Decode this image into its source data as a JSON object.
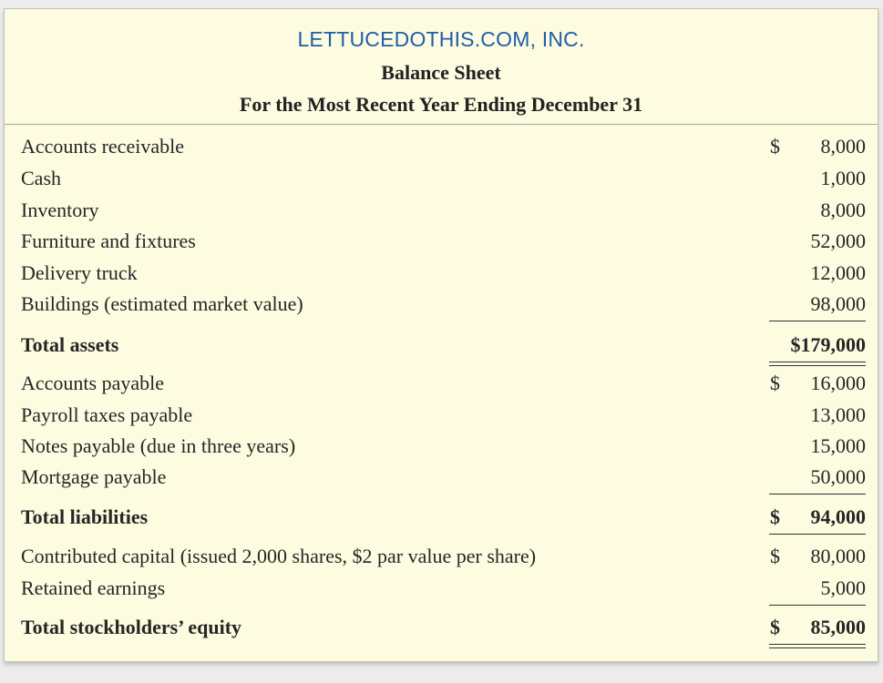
{
  "header": {
    "company": "LETTUCEDOTHIS.COM, INC.",
    "statement": "Balance Sheet",
    "period": "For the Most Recent Year Ending December 31"
  },
  "assets": [
    {
      "label": "Accounts receivable",
      "currency": "$",
      "amount": "8,000"
    },
    {
      "label": "Cash",
      "currency": "",
      "amount": "1,000"
    },
    {
      "label": "Inventory",
      "currency": "",
      "amount": "8,000"
    },
    {
      "label": "Furniture and fixtures",
      "currency": "",
      "amount": "52,000"
    },
    {
      "label": "Delivery truck",
      "currency": "",
      "amount": "12,000"
    },
    {
      "label": "Buildings (estimated market value)",
      "currency": "",
      "amount": "98,000"
    }
  ],
  "total_assets": {
    "label": "Total assets",
    "amount": "$179,000"
  },
  "liabilities": [
    {
      "label": "Accounts payable",
      "currency": "$",
      "amount": "16,000"
    },
    {
      "label": "Payroll taxes payable",
      "currency": "",
      "amount": "13,000"
    },
    {
      "label": "Notes payable (due in three years)",
      "currency": "",
      "amount": "15,000"
    },
    {
      "label": "Mortgage payable",
      "currency": "",
      "amount": "50,000"
    }
  ],
  "total_liabilities": {
    "label": "Total liabilities",
    "currency": "$",
    "amount": "94,000"
  },
  "equity": [
    {
      "label": "Contributed capital (issued 2,000 shares, $2 par value per share)",
      "currency": "$",
      "amount": "80,000"
    },
    {
      "label": "Retained earnings",
      "currency": "",
      "amount": "5,000"
    }
  ],
  "total_equity": {
    "label": "Total stockholders’ equity",
    "currency": "$",
    "amount": "85,000"
  }
}
